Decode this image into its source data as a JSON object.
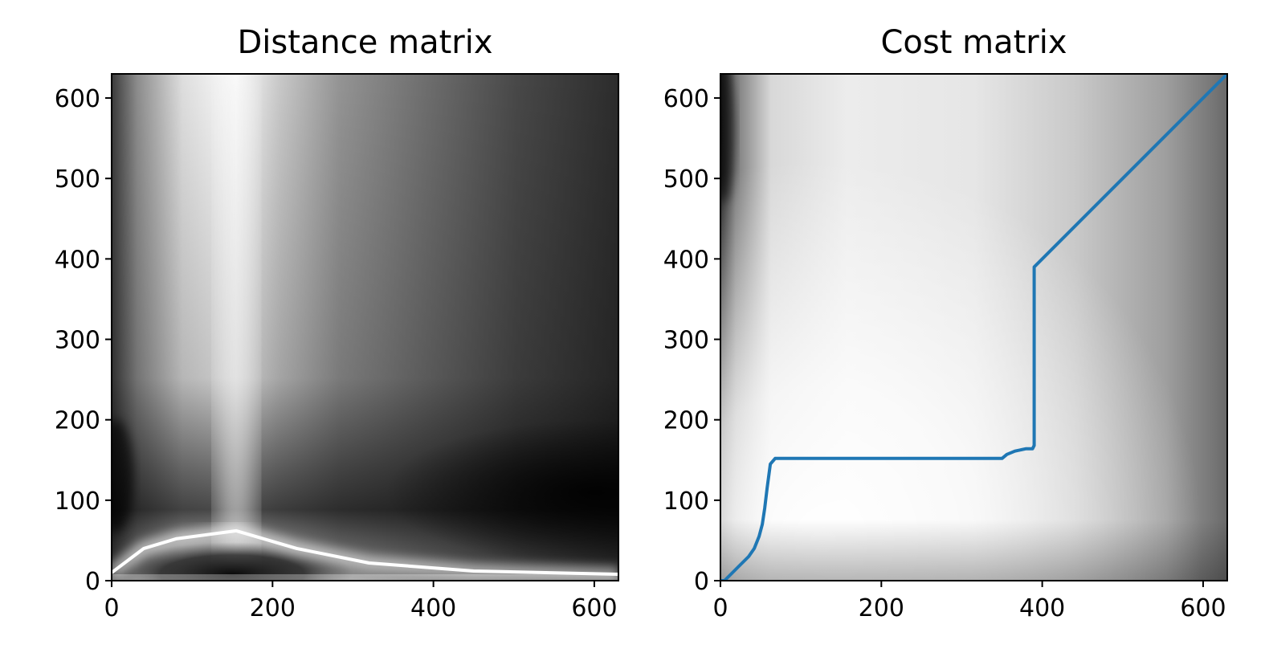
{
  "chart_data": [
    {
      "type": "heatmap",
      "title": "Distance matrix",
      "colormap": "grayscale",
      "xlim": [
        0,
        630
      ],
      "ylim": [
        0,
        630
      ],
      "xticks": [
        0,
        200,
        400,
        600
      ],
      "yticks": [
        0,
        100,
        200,
        300,
        400,
        500,
        600
      ],
      "xtick_labels": [
        "0",
        "200",
        "400",
        "600"
      ],
      "ytick_labels": [
        "0",
        "100",
        "200",
        "300",
        "400",
        "500",
        "600"
      ],
      "bright_ridge": [
        [
          0,
          10
        ],
        [
          40,
          40
        ],
        [
          80,
          52
        ],
        [
          155,
          62
        ],
        [
          230,
          40
        ],
        [
          320,
          22
        ],
        [
          450,
          12
        ],
        [
          630,
          8
        ]
      ],
      "bright_column_x": 155
    },
    {
      "type": "heatmap",
      "title": "Cost matrix",
      "colormap": "grayscale",
      "xlim": [
        0,
        630
      ],
      "ylim": [
        0,
        630
      ],
      "xticks": [
        0,
        200,
        400,
        600
      ],
      "yticks": [
        0,
        100,
        200,
        300,
        400,
        500,
        600
      ],
      "xtick_labels": [
        "0",
        "200",
        "400",
        "600"
      ],
      "ytick_labels": [
        "0",
        "100",
        "200",
        "300",
        "400",
        "500",
        "600"
      ],
      "path_color": "#1f77b4",
      "warping_path": [
        [
          0,
          0
        ],
        [
          5,
          0
        ],
        [
          15,
          10
        ],
        [
          25,
          20
        ],
        [
          35,
          30
        ],
        [
          42,
          40
        ],
        [
          48,
          55
        ],
        [
          52,
          70
        ],
        [
          55,
          90
        ],
        [
          58,
          115
        ],
        [
          60,
          130
        ],
        [
          62,
          145
        ],
        [
          68,
          152
        ],
        [
          150,
          152
        ],
        [
          250,
          152
        ],
        [
          350,
          152
        ],
        [
          356,
          157
        ],
        [
          366,
          161
        ],
        [
          380,
          164
        ],
        [
          388,
          164
        ],
        [
          390,
          168
        ],
        [
          390,
          390
        ],
        [
          628,
          628
        ]
      ]
    }
  ]
}
